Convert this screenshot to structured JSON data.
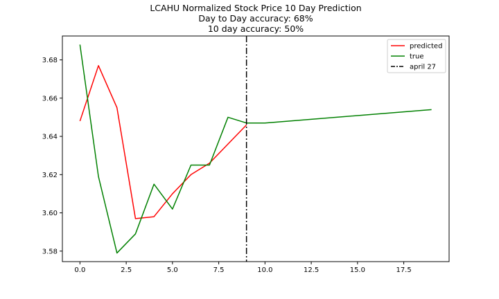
{
  "chart_data": {
    "type": "line",
    "title_lines": [
      "LCAHU Normalized Stock Price 10 Day Prediction",
      "Day to Day accuracy: 68%",
      "10 day accuracy: 50%"
    ],
    "xlabel": "",
    "ylabel": "",
    "xlim": [
      -0.95,
      19.95
    ],
    "ylim": [
      3.5745,
      3.6925
    ],
    "xticks": [
      0,
      2.5,
      5,
      7.5,
      10,
      12.5,
      15,
      17.5
    ],
    "xtick_labels": [
      "0.0",
      "2.5",
      "5.0",
      "7.5",
      "10.0",
      "12.5",
      "15.0",
      "17.5"
    ],
    "yticks": [
      3.58,
      3.6,
      3.62,
      3.64,
      3.66,
      3.68
    ],
    "ytick_labels": [
      "3.58",
      "3.60",
      "3.62",
      "3.64",
      "3.66",
      "3.68"
    ],
    "grid": false,
    "legend_position": "top-right",
    "series": [
      {
        "name": "predicted",
        "color": "#ff0000",
        "x": [
          0,
          1,
          2,
          3,
          4,
          5,
          6,
          7,
          8,
          9
        ],
        "y": [
          3.648,
          3.677,
          3.655,
          3.597,
          3.598,
          3.61,
          3.62,
          3.626,
          3.636,
          3.646
        ]
      },
      {
        "name": "true",
        "color": "#008000",
        "x": [
          0,
          1,
          2,
          3,
          4,
          5,
          6,
          7,
          8,
          9,
          10,
          19
        ],
        "y": [
          3.688,
          3.619,
          3.579,
          3.589,
          3.615,
          3.602,
          3.625,
          3.625,
          3.65,
          3.647,
          3.647,
          3.654
        ]
      }
    ],
    "vline": {
      "name": "april 27",
      "x": 9,
      "color": "#000000",
      "style": "dashdot"
    }
  }
}
